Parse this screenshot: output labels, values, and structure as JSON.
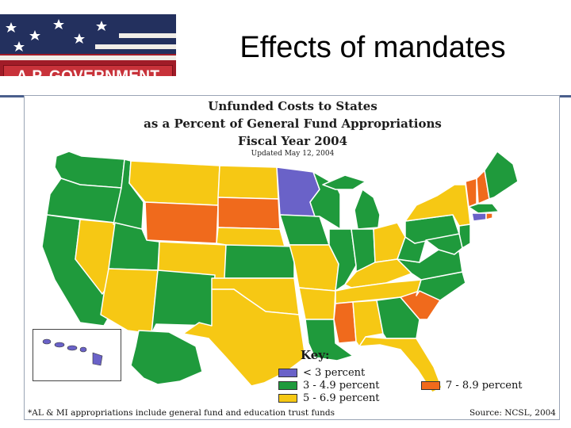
{
  "header": {
    "banner_label": "A.P. GOVERNMENT",
    "slide_title": "Effects of mandates"
  },
  "map": {
    "title_line1": "Unfunded Costs to States",
    "title_line2": "as a Percent of General Fund Appropriations",
    "title_line3": "Fiscal Year 2004",
    "updated": "Updated May 12, 2004",
    "key_title": "Key:",
    "legend": [
      {
        "label": "< 3 percent",
        "color": "#6a62c8"
      },
      {
        "label": "3 - 4.9 percent",
        "color": "#1f9a3c"
      },
      {
        "label": "5 - 6.9 percent",
        "color": "#f6c814"
      },
      {
        "label": "7 - 8.9 percent",
        "color": "#f06a1c"
      }
    ],
    "footnote": "*AL & MI appropriations include general fund and education trust funds",
    "source": "Source: NCSL, 2004",
    "colors": {
      "under3": "#6a62c8",
      "3to4_9": "#1f9a3c",
      "5to6_9": "#f6c814",
      "7to8_9": "#f06a1c",
      "border": "#ffffff",
      "water": "#ffffff"
    }
  }
}
